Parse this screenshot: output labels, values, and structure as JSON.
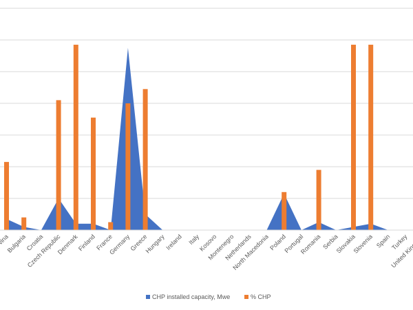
{
  "chart_data": {
    "type": "bar",
    "categories": [
      "Bosnia and Herzegovina",
      "Bulgaria",
      "Croatia",
      "Czech Republic",
      "Denmark",
      "Finland",
      "France",
      "Germany",
      "Greece",
      "Hungary",
      "Ireland",
      "Italy",
      "Kosovo",
      "Montenegro",
      "Netherlands",
      "North Macedonia",
      "Poland",
      "Portugal",
      "Romania",
      "Serbia",
      "Slovakia",
      "Slovenia",
      "Spain",
      "Turkey",
      "United Kingdom"
    ],
    "visible_category_labels": [
      "vina",
      "Bulgaria",
      "Croatia",
      "Czech Republic",
      "Denmark",
      "Finland",
      "France",
      "Germany",
      "Greece",
      "Hungary",
      "Ireland",
      "Italy",
      "Kosovo",
      "Montenegro",
      "Netherlands",
      "North Macedonia",
      "Poland",
      "Portugal",
      "Romania",
      "Serbia",
      "Slovakia",
      "Slovenia",
      "Spain",
      "Turkey",
      "United Kingdom"
    ],
    "series": [
      {
        "name": "CHP installed capacity, Mwe",
        "chart_type": "area",
        "color": "#4472c4",
        "values": [
          0.7,
          0.2,
          0.0,
          2.0,
          0.4,
          0.4,
          0.0,
          11.5,
          1.0,
          0.0,
          0.0,
          0.0,
          0.0,
          0.0,
          0.0,
          0.0,
          2.3,
          0.0,
          0.5,
          0.0,
          0.2,
          0.4,
          0.0,
          0.0,
          0.0
        ]
      },
      {
        "name": "% CHP",
        "chart_type": "bar",
        "color": "#ed7d31",
        "values": [
          4.3,
          0.8,
          0.0,
          8.2,
          11.7,
          7.1,
          0.5,
          8.0,
          8.9,
          0.0,
          0.0,
          0.0,
          0.0,
          0.0,
          0.0,
          0.0,
          2.4,
          0.0,
          3.8,
          0.0,
          11.7,
          11.7,
          0.0,
          0.0,
          0.1
        ]
      }
    ],
    "ylim": [
      0,
      14
    ],
    "gridline_step": 2,
    "grid": true,
    "legend_position": "bottom"
  }
}
